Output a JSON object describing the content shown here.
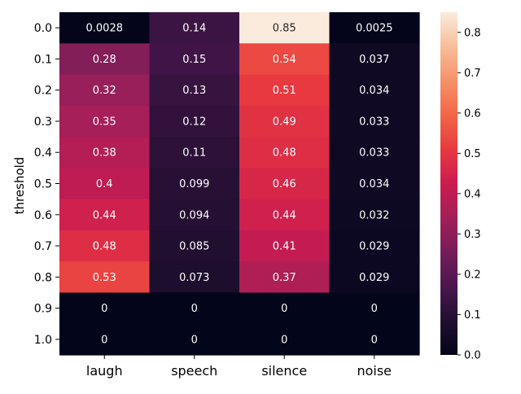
{
  "chart_data": {
    "type": "heatmap",
    "title": "",
    "xlabel": "",
    "ylabel": "threshold",
    "columns": [
      "laugh",
      "speech",
      "silence",
      "noise"
    ],
    "rows": [
      "0.0",
      "0.1",
      "0.2",
      "0.3",
      "0.4",
      "0.5",
      "0.6",
      "0.7",
      "0.8",
      "0.9",
      "1.0"
    ],
    "values": [
      [
        0.0028,
        0.14,
        0.85,
        0.0025
      ],
      [
        0.28,
        0.15,
        0.54,
        0.037
      ],
      [
        0.32,
        0.13,
        0.51,
        0.034
      ],
      [
        0.35,
        0.12,
        0.49,
        0.033
      ],
      [
        0.38,
        0.11,
        0.48,
        0.033
      ],
      [
        0.4,
        0.099,
        0.46,
        0.034
      ],
      [
        0.44,
        0.094,
        0.44,
        0.032
      ],
      [
        0.48,
        0.085,
        0.41,
        0.029
      ],
      [
        0.53,
        0.073,
        0.37,
        0.029
      ],
      [
        0,
        0,
        0,
        0
      ],
      [
        0,
        0,
        0,
        0
      ]
    ],
    "annotations": [
      [
        "0.0028",
        "0.14",
        "0.85",
        "0.0025"
      ],
      [
        "0.28",
        "0.15",
        "0.54",
        "0.037"
      ],
      [
        "0.32",
        "0.13",
        "0.51",
        "0.034"
      ],
      [
        "0.35",
        "0.12",
        "0.49",
        "0.033"
      ],
      [
        "0.38",
        "0.11",
        "0.48",
        "0.033"
      ],
      [
        "0.4",
        "0.099",
        "0.46",
        "0.034"
      ],
      [
        "0.44",
        "0.094",
        "0.44",
        "0.032"
      ],
      [
        "0.48",
        "0.085",
        "0.41",
        "0.029"
      ],
      [
        "0.53",
        "0.073",
        "0.37",
        "0.029"
      ],
      [
        "0",
        "0",
        "0",
        "0"
      ],
      [
        "0",
        "0",
        "0",
        "0"
      ]
    ],
    "colormap": "rocket",
    "color_range": [
      0,
      0.85
    ],
    "colorbar_ticks": [
      "0.0",
      "0.1",
      "0.2",
      "0.3",
      "0.4",
      "0.5",
      "0.6",
      "0.7",
      "0.8"
    ],
    "grid": false,
    "legend": "colorbar-right"
  }
}
